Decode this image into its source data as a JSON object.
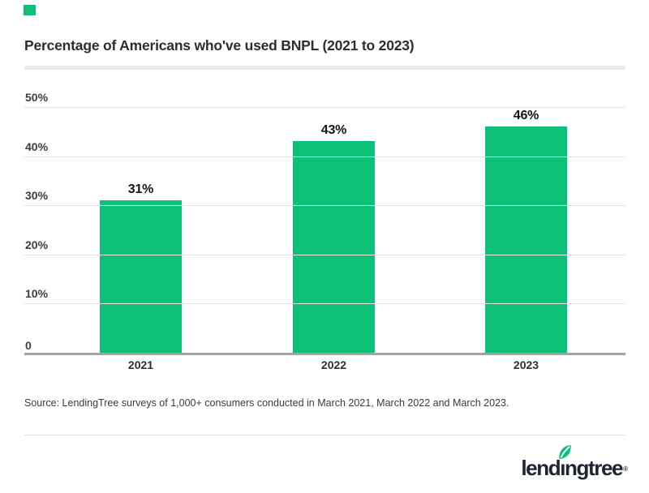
{
  "accent": {
    "color": "#0cc077"
  },
  "header": {
    "title": "Percentage of Americans who've used BNPL (2021 to 2023)"
  },
  "chart_data": {
    "type": "bar",
    "title": "Percentage of Americans who've used BNPL (2021 to 2023)",
    "categories": [
      "2021",
      "2022",
      "2023"
    ],
    "values": [
      31,
      43,
      46
    ],
    "value_labels": [
      "31%",
      "43%",
      "46%"
    ],
    "yticks": [
      0,
      10,
      20,
      30,
      40,
      50
    ],
    "ytick_labels": [
      "0",
      "10%",
      "20%",
      "30%",
      "40%",
      "50%"
    ],
    "ylim": [
      0,
      50
    ],
    "xlabel": "",
    "ylabel": "",
    "grid": true,
    "legend": "none",
    "bar_color": "#0cc077",
    "gridline_color": "#e4e4e4",
    "axis_line_color": "#a3a3a3"
  },
  "source": {
    "text": "Source: LendingTree surveys of 1,000+ consumers conducted in March 2021, March 2022 and March 2023."
  },
  "footer": {
    "logo_text_start": "lend",
    "logo_text_i": "ı",
    "logo_text_end": "ngtree",
    "logo_registered": "®",
    "logo_color": "#1c2533",
    "leaf_icon": "leaf-icon",
    "leaf_color": "#0cc077"
  }
}
